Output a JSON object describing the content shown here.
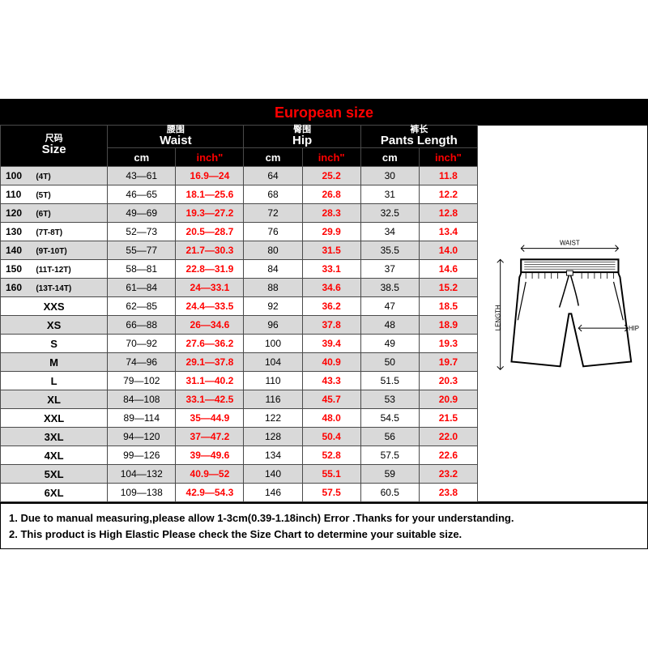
{
  "title": "European size",
  "columns": {
    "size": {
      "cn": "尺码",
      "en": "Size"
    },
    "waist": {
      "cn": "腰围",
      "en": "Waist"
    },
    "hip": {
      "cn": "臀围",
      "en": "Hip"
    },
    "length": {
      "cn": "裤长",
      "en": "Pants Length"
    }
  },
  "units": {
    "cm": "cm",
    "inch": "inch\""
  },
  "diagram": {
    "waist": "WAIST",
    "hip": "HIP",
    "length": "LENGTH"
  },
  "rows": [
    {
      "s1": "100",
      "s2": "(4T)",
      "wcm": "43—61",
      "win": "16.9—24",
      "hcm": "64",
      "hin": "25.2",
      "lcm": "30",
      "lin": "11.8"
    },
    {
      "s1": "110",
      "s2": "(5T)",
      "wcm": "46—65",
      "win": "18.1—25.6",
      "hcm": "68",
      "hin": "26.8",
      "lcm": "31",
      "lin": "12.2"
    },
    {
      "s1": "120",
      "s2": "(6T)",
      "wcm": "49—69",
      "win": "19.3—27.2",
      "hcm": "72",
      "hin": "28.3",
      "lcm": "32.5",
      "lin": "12.8"
    },
    {
      "s1": "130",
      "s2": "(7T-8T)",
      "wcm": "52—73",
      "win": "20.5—28.7",
      "hcm": "76",
      "hin": "29.9",
      "lcm": "34",
      "lin": "13.4"
    },
    {
      "s1": "140",
      "s2": "(9T-10T)",
      "wcm": "55—77",
      "win": "21.7—30.3",
      "hcm": "80",
      "hin": "31.5",
      "lcm": "35.5",
      "lin": "14.0"
    },
    {
      "s1": "150",
      "s2": "(11T-12T)",
      "wcm": "58—81",
      "win": "22.8—31.9",
      "hcm": "84",
      "hin": "33.1",
      "lcm": "37",
      "lin": "14.6"
    },
    {
      "s1": "160",
      "s2": "(13T-14T)",
      "wcm": "61—84",
      "win": "24—33.1",
      "hcm": "88",
      "hin": "34.6",
      "lcm": "38.5",
      "lin": "15.2"
    },
    {
      "s1": "XXS",
      "s2": "",
      "wcm": "62—85",
      "win": "24.4—33.5",
      "hcm": "92",
      "hin": "36.2",
      "lcm": "47",
      "lin": "18.5"
    },
    {
      "s1": "XS",
      "s2": "",
      "wcm": "66—88",
      "win": "26—34.6",
      "hcm": "96",
      "hin": "37.8",
      "lcm": "48",
      "lin": "18.9"
    },
    {
      "s1": "S",
      "s2": "",
      "wcm": "70—92",
      "win": "27.6—36.2",
      "hcm": "100",
      "hin": "39.4",
      "lcm": "49",
      "lin": "19.3"
    },
    {
      "s1": "M",
      "s2": "",
      "wcm": "74—96",
      "win": "29.1—37.8",
      "hcm": "104",
      "hin": "40.9",
      "lcm": "50",
      "lin": "19.7"
    },
    {
      "s1": "L",
      "s2": "",
      "wcm": "79—102",
      "win": "31.1—40.2",
      "hcm": "110",
      "hin": "43.3",
      "lcm": "51.5",
      "lin": "20.3"
    },
    {
      "s1": "XL",
      "s2": "",
      "wcm": "84—108",
      "win": "33.1—42.5",
      "hcm": "116",
      "hin": "45.7",
      "lcm": "53",
      "lin": "20.9"
    },
    {
      "s1": "XXL",
      "s2": "",
      "wcm": "89—114",
      "win": "35—44.9",
      "hcm": "122",
      "hin": "48.0",
      "lcm": "54.5",
      "lin": "21.5"
    },
    {
      "s1": "3XL",
      "s2": "",
      "wcm": "94—120",
      "win": "37—47.2",
      "hcm": "128",
      "hin": "50.4",
      "lcm": "56",
      "lin": "22.0"
    },
    {
      "s1": "4XL",
      "s2": "",
      "wcm": "99—126",
      "win": "39—49.6",
      "hcm": "134",
      "hin": "52.8",
      "lcm": "57.5",
      "lin": "22.6"
    },
    {
      "s1": "5XL",
      "s2": "",
      "wcm": "104—132",
      "win": "40.9—52",
      "hcm": "140",
      "hin": "55.1",
      "lcm": "59",
      "lin": "23.2"
    },
    {
      "s1": "6XL",
      "s2": "",
      "wcm": "109—138",
      "win": "42.9—54.3",
      "hcm": "146",
      "hin": "57.5",
      "lcm": "60.5",
      "lin": "23.8"
    }
  ],
  "notes": {
    "l1": "1. Due to manual measuring,please allow 1-3cm(0.39-1.18inch) Error .Thanks for your understanding.",
    "l2": "2. This product is High Elastic Please check the Size Chart to determine your suitable size."
  },
  "colors": {
    "title_fg": "#ff0000",
    "hdr_bg": "#000000",
    "hdr_fg": "#ffffff",
    "inch_fg": "#ff0000",
    "alt_bg": "#d9d9d9"
  }
}
